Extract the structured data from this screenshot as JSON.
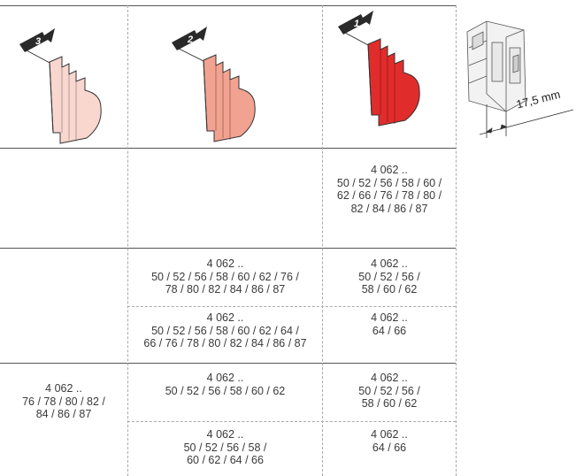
{
  "header": {
    "modules": [
      {
        "arrow_number": "3",
        "fill": "#f9d6ce"
      },
      {
        "arrow_number": "2",
        "fill": "#f2a290"
      },
      {
        "arrow_number": "1",
        "fill": "#e12c2c"
      }
    ],
    "device_width_label": "17,5 mm"
  },
  "rows": [
    {
      "col3": [
        "4 062 ..\n50 / 52 / 56 / 58 / 60 /\n62 / 66 / 76 / 78 / 80 /\n82 / 84 / 86 / 87"
      ]
    },
    {
      "col2_top": "4 062 ..\n50 / 52 / 56 / 58 / 60 / 62 / 76 /\n78 / 80 / 82 / 84 / 86 / 87",
      "col2_bottom": "4 062 ..\n50 / 52 / 56 / 58 / 60 / 62 / 64 /\n66 / 76 / 78 / 80 / 82 / 84 / 86 / 87",
      "col3_top": "4 062 ..\n50 / 52 / 56 /\n58 / 60 / 62",
      "col3_bottom": "4 062 ..\n64 / 66"
    },
    {
      "col1": "4 062 ..\n76 / 78 / 80 / 82 /\n84 / 86 / 87",
      "col2_top": "4 062 ..\n50 / 52 / 56 / 58 / 60 / 62",
      "col2_bottom": "4 062 ..\n50 / 52 / 56 / 58 /\n60 / 62 / 64 / 66",
      "col3_top": "4 062 ..\n50 / 52 / 56 /\n58 / 60 / 62",
      "col3_bottom": "4 062 ..\n64 / 66"
    }
  ]
}
